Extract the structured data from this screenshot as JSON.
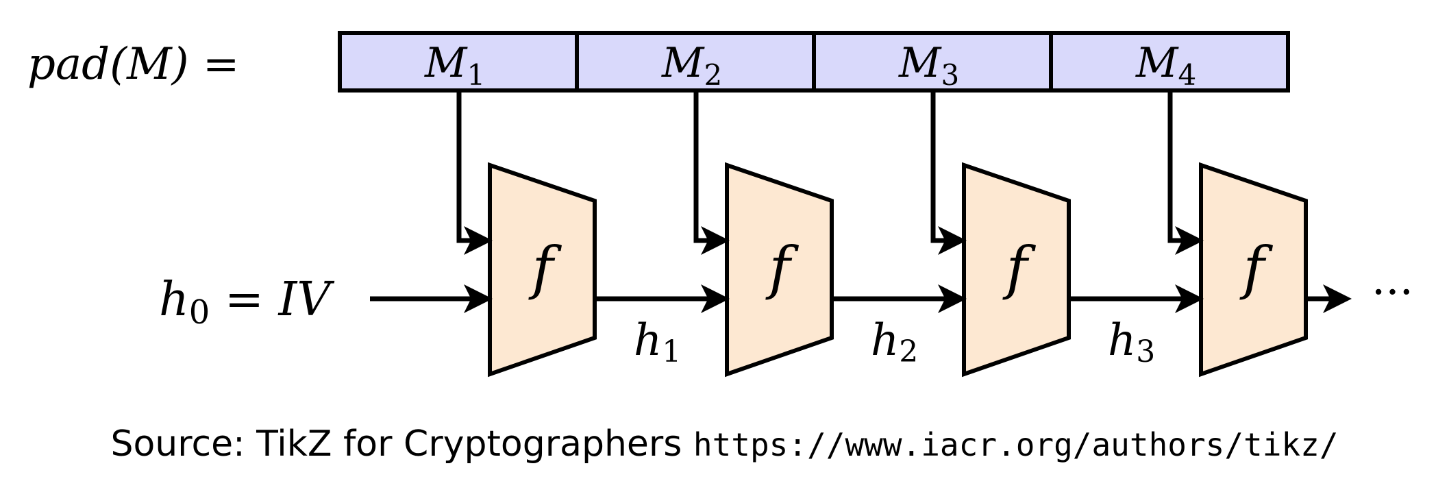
{
  "pad_label": {
    "base": "pad(M) ="
  },
  "blocks": [
    {
      "base": "M",
      "sub": "1"
    },
    {
      "base": "M",
      "sub": "2"
    },
    {
      "base": "M",
      "sub": "3"
    },
    {
      "base": "M",
      "sub": "4"
    }
  ],
  "function_label": "f",
  "input_label": {
    "base": "h",
    "sub": "0",
    "rest": " = IV"
  },
  "chain_labels": [
    {
      "base": "h",
      "sub": "1"
    },
    {
      "base": "h",
      "sub": "2"
    },
    {
      "base": "h",
      "sub": "3"
    }
  ],
  "ellipsis": "···",
  "colors": {
    "block_fill": "#d9d9fb",
    "function_fill": "#fde8d2",
    "stroke": "#000000"
  },
  "caption": {
    "text": "Source: TikZ for Cryptographers ",
    "url": "https://www.iacr.org/authors/tikz/"
  }
}
